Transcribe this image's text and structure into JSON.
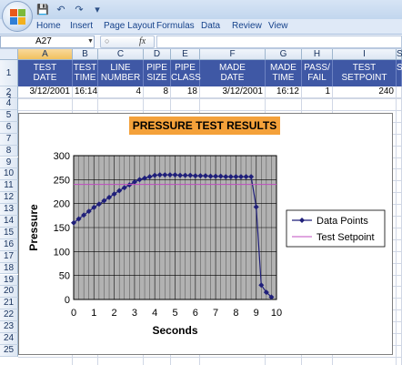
{
  "quick_access": {
    "icons": [
      "save-icon",
      "undo-icon",
      "redo-icon",
      "customize-icon"
    ]
  },
  "ribbon": {
    "tabs": [
      "Home",
      "Insert",
      "Page Layout",
      "Formulas",
      "Data",
      "Review",
      "View"
    ]
  },
  "formula_bar": {
    "name_box": "A27",
    "fx": "fx",
    "formula": ""
  },
  "columns": [
    "A",
    "B",
    "C",
    "D",
    "E",
    "F",
    "G",
    "H",
    "I",
    "SI"
  ],
  "rows": [
    "1",
    "2",
    "3",
    "4",
    "5",
    "6",
    "7",
    "8",
    "9",
    "10",
    "11",
    "12",
    "13",
    "14",
    "15",
    "16",
    "17",
    "18",
    "19",
    "20",
    "21",
    "22",
    "23",
    "24",
    "25"
  ],
  "header_row": [
    [
      "TEST",
      "DATE"
    ],
    [
      "TEST",
      "TIME"
    ],
    [
      "LINE",
      "NUMBER"
    ],
    [
      "PIPE",
      "SIZE"
    ],
    [
      "PIPE",
      "CLASS"
    ],
    [
      "MADE",
      "DATE"
    ],
    [
      "MADE",
      "TIME"
    ],
    [
      "PASS/",
      "FAIL"
    ],
    [
      "TEST",
      "SETPOINT"
    ],
    [
      "SI",
      ""
    ]
  ],
  "data_row": [
    "3/12/2001",
    "16:14",
    "4",
    "8",
    "18",
    "3/12/2001",
    "16:12",
    "1",
    "240",
    ""
  ],
  "chart_data": {
    "type": "line",
    "title": "PRESSURE  TEST RESULTS",
    "xlabel": "Seconds",
    "ylabel": "Pressure",
    "xlim": [
      0,
      10
    ],
    "ylim": [
      0,
      300
    ],
    "xticks": [
      "0",
      "1",
      "2",
      "3",
      "4",
      "5",
      "6",
      "7",
      "8",
      "9",
      "10"
    ],
    "yticks": [
      "0",
      "50",
      "100",
      "150",
      "200",
      "250",
      "300"
    ],
    "grid": true,
    "legend_position": "right",
    "series": [
      {
        "name": "Data Points",
        "color": "#1f1f7a",
        "marker": "diamond",
        "x": [
          0,
          0.25,
          0.5,
          0.75,
          1,
          1.25,
          1.5,
          1.75,
          2,
          2.25,
          2.5,
          2.75,
          3,
          3.25,
          3.5,
          3.75,
          4,
          4.25,
          4.5,
          4.75,
          5,
          5.25,
          5.5,
          5.75,
          6,
          6.25,
          6.5,
          6.75,
          7,
          7.25,
          7.5,
          7.75,
          8,
          8.25,
          8.5,
          8.75,
          9,
          9.25,
          9.5,
          9.75
        ],
        "values": [
          160,
          168,
          176,
          184,
          192,
          199,
          206,
          213,
          220,
          227,
          233,
          239,
          245,
          250,
          253,
          256,
          259,
          260,
          260,
          260,
          260,
          259,
          259,
          259,
          258,
          258,
          258,
          257,
          257,
          257,
          256,
          256,
          256,
          256,
          256,
          256,
          193,
          30,
          15,
          5
        ]
      },
      {
        "name": "Test Setpoint",
        "color": "#c04cc0",
        "marker": "none",
        "x": [
          0,
          10
        ],
        "values": [
          240,
          240
        ]
      }
    ]
  }
}
